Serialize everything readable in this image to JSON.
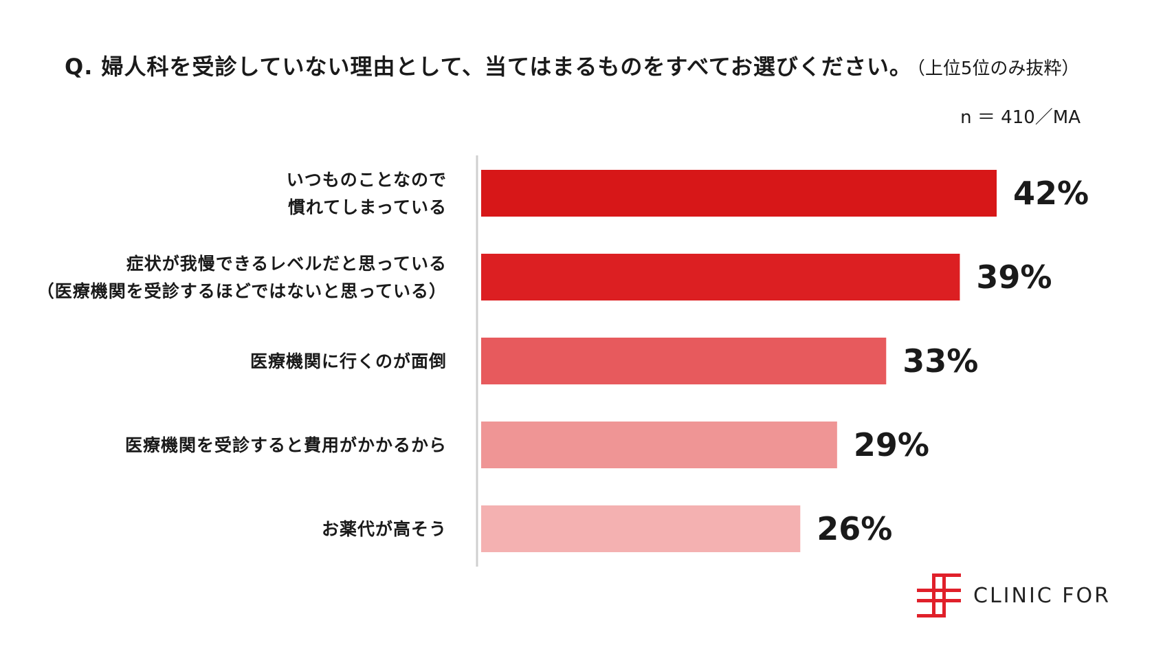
{
  "title": "Q. 婦人科を受診していない理由として、当てはまるものをすべてお選びください。",
  "title_note": "（上位5位のみ抜粋）",
  "sample_note": "n ＝ 410／MA",
  "brand": {
    "name": "CLINIC FOR",
    "color": "#e0202a",
    "logo_icon": "cross-logo-icon"
  },
  "chart_data": {
    "type": "bar",
    "orientation": "horizontal",
    "categories": [
      [
        "いつものことなので",
        "慣れてしまっている"
      ],
      [
        "症状が我慢できるレベルだと思っている",
        "（医療機関を受診するほどではないと思っている）"
      ],
      [
        "医療機関に行くのが面倒"
      ],
      [
        "医療機関を受診すると費用がかかるから"
      ],
      [
        "お薬代が高そう"
      ]
    ],
    "values": [
      42,
      39,
      33,
      29,
      26
    ],
    "value_labels": [
      "42%",
      "39%",
      "33%",
      "29%",
      "26%"
    ],
    "colors": [
      "#d71718",
      "#dc1f22",
      "#e75a5d",
      "#ef9595",
      "#f4b1b1"
    ],
    "unit": "%",
    "xlim": [
      0,
      42
    ],
    "grid": false,
    "legend": "none"
  }
}
